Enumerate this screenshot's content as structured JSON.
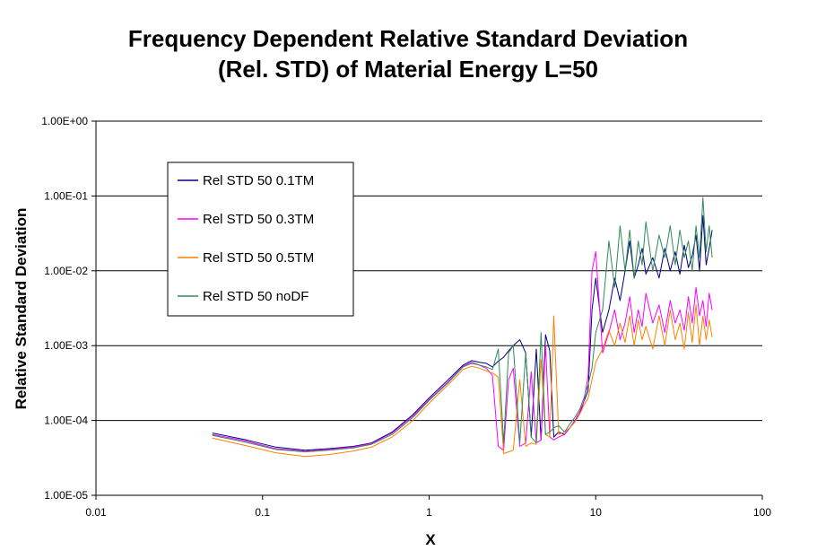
{
  "chart_data": {
    "type": "line",
    "title": "Frequency Dependent Relative Standard Deviation",
    "subtitle": "(Rel. STD)  of Material Energy L=50",
    "xlabel": "X",
    "ylabel": "Relative Standard Deviation",
    "x_scale": "log",
    "y_scale": "log",
    "xlim": [
      0.01,
      100
    ],
    "ylim": [
      1e-05,
      1
    ],
    "x_ticks": [
      "0.01",
      "0.1",
      "1",
      "10",
      "100"
    ],
    "y_ticks": [
      "1.00E-05",
      "1.00E-04",
      "1.00E-03",
      "1.00E-02",
      "1.00E-01",
      "1.00E+00"
    ],
    "grid": "horizontal major gridlines",
    "legend_position": "upper-left inside plot",
    "series": [
      {
        "name": "Rel STD 50 0.1TM",
        "color": "#000080",
        "x": [
          0.05,
          0.08,
          0.12,
          0.18,
          0.25,
          0.35,
          0.45,
          0.6,
          0.8,
          1.0,
          1.3,
          1.6,
          1.8,
          2.0,
          2.2,
          2.4,
          2.6,
          2.8,
          3.0,
          3.2,
          3.5,
          3.8,
          4.1,
          4.4,
          4.7,
          5.0,
          5.3,
          5.6,
          6.0,
          6.5,
          7.0,
          7.5,
          8.0,
          8.5,
          9.0,
          9.5,
          10,
          11,
          12,
          13,
          14,
          15,
          16,
          17,
          18,
          19,
          20,
          22,
          24,
          26,
          28,
          30,
          32,
          34,
          36,
          38,
          40,
          42,
          44,
          46,
          48,
          50
        ],
        "y": [
          6.8e-05,
          5.5e-05,
          4.4e-05,
          4e-05,
          4.2e-05,
          4.5e-05,
          5e-05,
          7e-05,
          0.00012,
          0.0002,
          0.00035,
          0.00055,
          0.00063,
          0.0006,
          0.00058,
          0.00052,
          0.00062,
          0.0007,
          0.00085,
          0.001,
          0.0012,
          0.0008,
          6e-05,
          0.0009,
          5.5e-05,
          0.0014,
          0.00085,
          6e-05,
          7e-05,
          6.5e-05,
          8e-05,
          0.0001,
          0.00012,
          0.00018,
          0.00025,
          0.003,
          0.008,
          0.0015,
          0.003,
          0.008,
          0.004,
          0.01,
          0.025,
          0.008,
          0.012,
          0.02,
          0.009,
          0.015,
          0.008,
          0.02,
          0.01,
          0.018,
          0.009,
          0.022,
          0.011,
          0.016,
          0.03,
          0.01,
          0.055,
          0.012,
          0.02,
          0.035
        ]
      },
      {
        "name": "Rel STD 50 0.3TM",
        "color": "#FF00FF",
        "x": [
          0.05,
          0.08,
          0.12,
          0.18,
          0.25,
          0.35,
          0.45,
          0.6,
          0.8,
          1.0,
          1.3,
          1.6,
          1.8,
          2.0,
          2.2,
          2.4,
          2.6,
          2.8,
          3.0,
          3.2,
          3.5,
          3.8,
          4.1,
          4.4,
          4.7,
          5.0,
          5.3,
          5.6,
          6.0,
          6.5,
          7.0,
          7.5,
          8.0,
          8.5,
          9.0,
          9.5,
          10,
          11,
          12,
          13,
          14,
          15,
          16,
          17,
          18,
          19,
          20,
          22,
          24,
          26,
          28,
          30,
          32,
          34,
          36,
          38,
          40,
          42,
          44,
          46,
          48,
          50
        ],
        "y": [
          6.5e-05,
          5.3e-05,
          4.2e-05,
          3.9e-05,
          4.1e-05,
          4.4e-05,
          4.9e-05,
          6.8e-05,
          0.000115,
          0.00019,
          0.00033,
          0.00053,
          0.0006,
          0.00055,
          0.0005,
          0.0004,
          4.5e-05,
          4e-05,
          0.00035,
          0.0005,
          4.5e-05,
          5e-05,
          0.00045,
          5e-05,
          5.5e-05,
          0.001,
          6e-05,
          5.5e-05,
          6e-05,
          6.5e-05,
          8e-05,
          0.0001,
          0.00013,
          0.00018,
          0.0004,
          0.01,
          0.018,
          0.0008,
          0.0015,
          0.003,
          0.0012,
          0.002,
          0.0045,
          0.0015,
          0.003,
          0.0018,
          0.005,
          0.002,
          0.0035,
          0.0015,
          0.004,
          0.002,
          0.003,
          0.0016,
          0.0045,
          0.002,
          0.006,
          0.0025,
          0.004,
          0.0018,
          0.005,
          0.003
        ]
      },
      {
        "name": "Rel STD 50 0.5TM",
        "color": "#FF8000",
        "x": [
          0.05,
          0.08,
          0.12,
          0.18,
          0.25,
          0.35,
          0.45,
          0.6,
          0.8,
          1.0,
          1.3,
          1.6,
          1.8,
          2.0,
          2.2,
          2.4,
          2.6,
          2.8,
          3.0,
          3.2,
          3.5,
          3.8,
          4.1,
          4.4,
          4.7,
          5.0,
          5.3,
          5.6,
          6.0,
          6.5,
          7.0,
          7.5,
          8.0,
          8.5,
          9.0,
          9.5,
          10,
          11,
          12,
          13,
          14,
          15,
          16,
          17,
          18,
          19,
          20,
          22,
          24,
          26,
          28,
          30,
          32,
          34,
          36,
          38,
          40,
          42,
          44,
          46,
          48,
          50
        ],
        "y": [
          5.8e-05,
          4.6e-05,
          3.7e-05,
          3.3e-05,
          3.5e-05,
          3.9e-05,
          4.4e-05,
          6e-05,
          0.0001,
          0.00017,
          0.0003,
          0.00048,
          0.00053,
          0.0005,
          0.00046,
          0.00043,
          0.00038,
          3.6e-05,
          3.8e-05,
          4e-05,
          0.00035,
          4.5e-05,
          5e-05,
          4.8e-05,
          0.00065,
          6.5e-05,
          6e-05,
          0.0025,
          6.5e-05,
          7e-05,
          8e-05,
          9.5e-05,
          0.00012,
          0.00016,
          0.0002,
          0.00035,
          0.0006,
          0.0009,
          0.0016,
          0.001,
          0.002,
          0.0011,
          0.0025,
          0.001,
          0.0022,
          0.0012,
          0.0018,
          0.0009,
          0.0025,
          0.001,
          0.003,
          0.0012,
          0.002,
          0.0009,
          0.0028,
          0.0011,
          0.0035,
          0.001,
          0.0025,
          0.0012,
          0.0022,
          0.0013
        ]
      },
      {
        "name": "Rel STD 50 noDF",
        "color": "#2E8B57",
        "x": [
          0.05,
          0.08,
          0.12,
          0.18,
          0.25,
          0.35,
          0.45,
          0.6,
          0.8,
          1.0,
          1.3,
          1.6,
          1.8,
          2.0,
          2.2,
          2.4,
          2.6,
          2.8,
          3.0,
          3.2,
          3.5,
          3.8,
          4.1,
          4.4,
          4.7,
          5.0,
          5.3,
          5.6,
          6.0,
          6.5,
          7.0,
          7.5,
          8.0,
          8.5,
          9.0,
          9.5,
          10,
          11,
          12,
          13,
          14,
          15,
          16,
          17,
          18,
          19,
          20,
          22,
          24,
          26,
          28,
          30,
          32,
          34,
          36,
          38,
          40,
          42,
          44,
          46,
          48,
          50
        ],
        "y": [
          6.3e-05,
          5.1e-05,
          4.1e-05,
          3.8e-05,
          4e-05,
          4.3e-05,
          4.8e-05,
          6.5e-05,
          0.00011,
          0.000185,
          0.00032,
          0.00052,
          0.00058,
          0.00055,
          0.00052,
          0.00048,
          0.0009,
          5e-05,
          0.0008,
          0.001,
          5e-05,
          0.0008,
          6e-05,
          5e-05,
          0.0015,
          6.5e-05,
          7e-05,
          8e-05,
          8.5e-05,
          7e-05,
          9e-05,
          0.00011,
          0.00014,
          0.0002,
          0.0003,
          0.0005,
          0.0015,
          0.003,
          0.025,
          0.006,
          0.04,
          0.01,
          0.035,
          0.008,
          0.025,
          0.012,
          0.045,
          0.01,
          0.03,
          0.015,
          0.04,
          0.012,
          0.035,
          0.015,
          0.025,
          0.01,
          0.04,
          0.015,
          0.095,
          0.018,
          0.04,
          0.015
        ]
      }
    ]
  }
}
